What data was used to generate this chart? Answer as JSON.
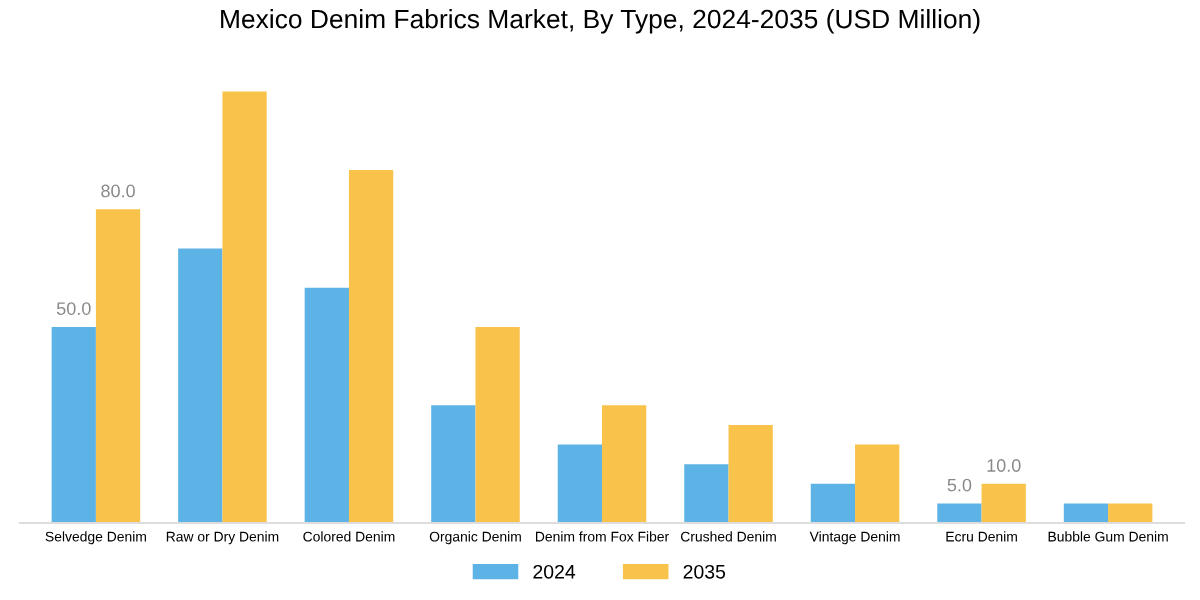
{
  "chart_data": {
    "type": "bar",
    "title": "Mexico Denim Fabrics Market, By Type, 2024-2035 (USD Million)",
    "categories": [
      "Selvedge Denim",
      "Raw or Dry Denim",
      "Colored Denim",
      "Organic Denim",
      "Denim from Fox Fiber",
      "Crushed Denim",
      "Vintage Denim",
      "Ecru Denim",
      "Bubble Gum Denim"
    ],
    "series": [
      {
        "name": "2024",
        "color": "#5db3e6",
        "values": [
          50,
          70,
          60,
          30,
          20,
          15,
          10,
          5,
          5
        ],
        "value_labels": [
          "50.0",
          null,
          null,
          null,
          null,
          null,
          null,
          "5.0",
          null
        ]
      },
      {
        "name": "2035",
        "color": "#f9c34b",
        "values": [
          80,
          110,
          90,
          50,
          30,
          25,
          20,
          10,
          5
        ],
        "value_labels": [
          "80.0",
          null,
          null,
          null,
          null,
          null,
          null,
          "10.0",
          null
        ]
      }
    ],
    "tick_labels": "x",
    "grid": false,
    "legend": "bottom"
  }
}
